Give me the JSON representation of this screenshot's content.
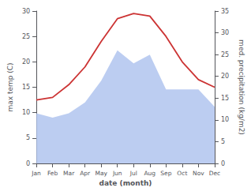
{
  "chart_data": {
    "type": "line",
    "xlabel": "date (month)",
    "ylabel": "max temp (C)",
    "y2label": "med. precipitation (kg/m2)",
    "categories": [
      "Jan",
      "Feb",
      "Mar",
      "Apr",
      "May",
      "Jun",
      "Jul",
      "Aug",
      "Sep",
      "Oct",
      "Nov",
      "Dec"
    ],
    "series": [
      {
        "type": "area",
        "axis": "y2",
        "color": "#b0c4ee",
        "values": [
          11.5,
          10.5,
          11.5,
          14.0,
          19.0,
          26.0,
          23.0,
          25.0,
          17.0,
          17.0,
          17.0,
          13.0
        ]
      },
      {
        "type": "line",
        "color": "#cc3333",
        "values": [
          12.5,
          13.0,
          15.5,
          19.0,
          24.0,
          28.5,
          29.5,
          29.0,
          25.0,
          20.0,
          16.5,
          15.0
        ]
      }
    ],
    "ylim": [
      0,
      30
    ],
    "yticks": [
      0,
      5,
      10,
      15,
      20,
      25,
      30
    ],
    "y2lim": [
      0,
      35
    ],
    "y2ticks": [
      0,
      5,
      10,
      15,
      20,
      25,
      30,
      35
    ],
    "grid": false
  }
}
